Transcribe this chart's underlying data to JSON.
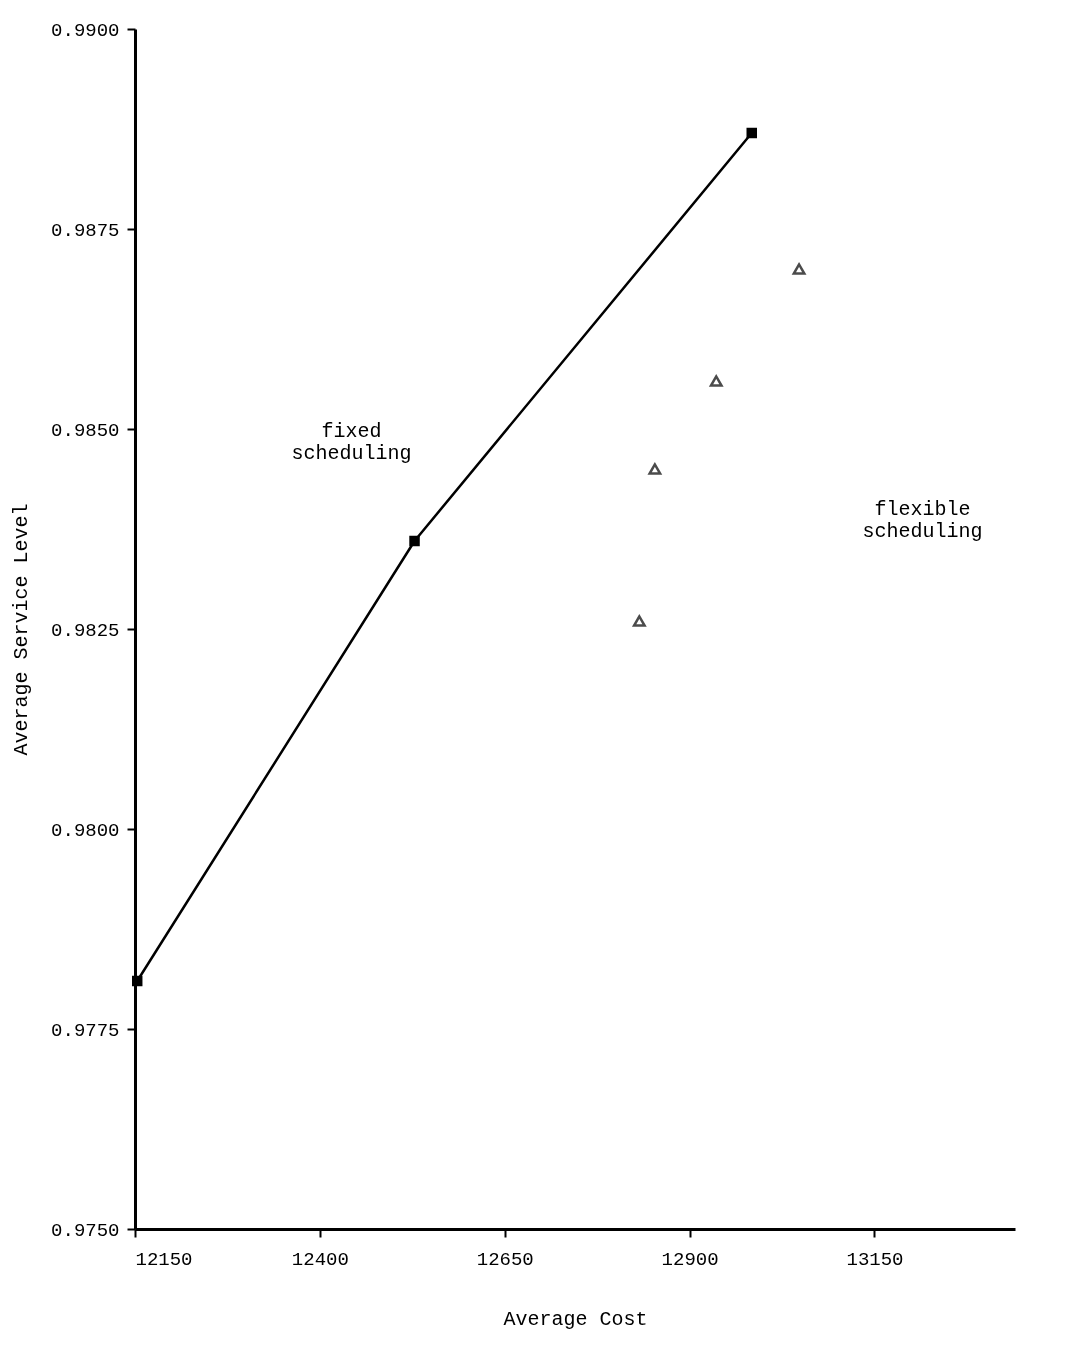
{
  "chart_data": {
    "type": "line",
    "xlabel": "Average Cost",
    "ylabel": "Average Service Level",
    "series": [
      {
        "type": "line",
        "marker": "square",
        "color": "#000000",
        "x": [
          12153,
          12528,
          12984
        ],
        "values": [
          0.9781,
          0.9836,
          0.9887
        ]
      },
      {
        "type": "scatter",
        "marker": "triangle",
        "color": "#000000",
        "x": [
          12832,
          12853,
          12936,
          13048
        ],
        "values": [
          0.9826,
          0.9845,
          0.9856,
          0.987
        ]
      }
    ],
    "xlim": [
      12150,
      13340
    ],
    "xticks": [
      12150,
      12400,
      12650,
      12900,
      13150
    ],
    "ylim": [
      0.975,
      0.99
    ],
    "yticks": [
      {
        "value": 0.975,
        "label": "0.9750"
      },
      {
        "value": 0.9775,
        "label": "0.9775"
      },
      {
        "value": 0.98,
        "label": "0.9800"
      },
      {
        "value": 0.9825,
        "label": "0.9825"
      },
      {
        "value": 0.985,
        "label": "0.9850"
      },
      {
        "value": 0.9875,
        "label": "0.9875"
      },
      {
        "value": 0.99,
        "label": "0.9900"
      }
    ],
    "grid": false,
    "annotations": [
      "fixed scheduling",
      "flexible scheduling"
    ]
  }
}
